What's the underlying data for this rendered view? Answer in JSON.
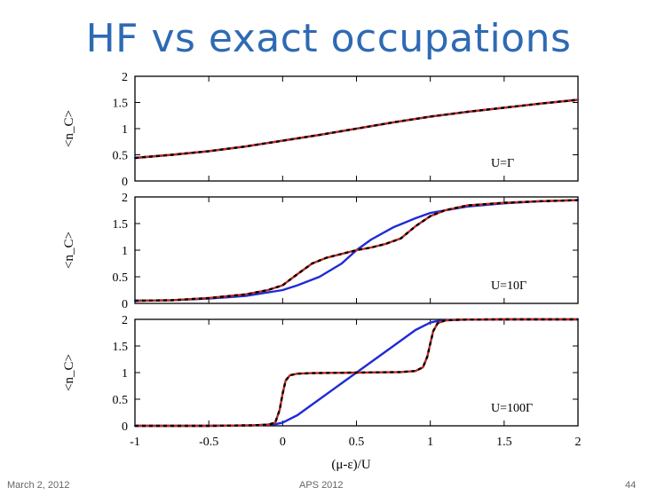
{
  "slide": {
    "title": "HF vs exact occupations",
    "footer_left": "March 2, 2012",
    "footer_center": "APS 2012",
    "footer_right": "44"
  },
  "colors": {
    "title": "#2E6AB4",
    "hf_curve": "#1E2BD6",
    "exact_curve_a": "#C0281E",
    "exact_curve_b": "#000000"
  },
  "chart_data": [
    {
      "type": "line",
      "panel": "top",
      "annotation": "U=Γ",
      "ylabel": "<n_C>",
      "xlabel": "",
      "xlim": [
        -1,
        2
      ],
      "ylim": [
        0,
        2
      ],
      "yticks": [
        "0",
        "0.5",
        "1",
        "1.5",
        "2"
      ],
      "series": [
        {
          "style": "solid-blue",
          "x": [
            -1,
            -0.75,
            -0.5,
            -0.25,
            0,
            0.25,
            0.5,
            0.75,
            1,
            1.25,
            1.5,
            1.75,
            2
          ],
          "y": [
            0.44,
            0.5,
            0.57,
            0.66,
            0.77,
            0.88,
            1.0,
            1.12,
            1.23,
            1.32,
            1.4,
            1.48,
            1.55
          ]
        },
        {
          "style": "dashed-red-black",
          "x": [
            -1,
            -0.75,
            -0.5,
            -0.25,
            0,
            0.25,
            0.5,
            0.75,
            1,
            1.25,
            1.5,
            1.75,
            2
          ],
          "y": [
            0.44,
            0.5,
            0.57,
            0.66,
            0.77,
            0.88,
            1.0,
            1.12,
            1.23,
            1.32,
            1.4,
            1.48,
            1.55
          ]
        }
      ]
    },
    {
      "type": "line",
      "panel": "middle",
      "annotation": "U=10Γ",
      "ylabel": "<n_C>",
      "xlabel": "",
      "xlim": [
        -1,
        2
      ],
      "ylim": [
        0,
        2
      ],
      "yticks": [
        "0",
        "0.5",
        "1",
        "1.5",
        "2"
      ],
      "series": [
        {
          "style": "solid-blue",
          "x": [
            -1,
            -0.75,
            -0.5,
            -0.25,
            0,
            0.1,
            0.25,
            0.4,
            0.5,
            0.6,
            0.75,
            0.9,
            1,
            1.25,
            1.5,
            1.75,
            2
          ],
          "y": [
            0.05,
            0.06,
            0.09,
            0.14,
            0.25,
            0.34,
            0.5,
            0.75,
            1.0,
            1.2,
            1.43,
            1.6,
            1.7,
            1.82,
            1.88,
            1.92,
            1.94
          ]
        },
        {
          "style": "dashed-red-black",
          "x": [
            -1,
            -0.75,
            -0.5,
            -0.25,
            -0.1,
            0,
            0.1,
            0.2,
            0.3,
            0.4,
            0.5,
            0.6,
            0.7,
            0.8,
            0.9,
            1.0,
            1.1,
            1.25,
            1.5,
            1.75,
            2
          ],
          "y": [
            0.05,
            0.06,
            0.1,
            0.17,
            0.25,
            0.34,
            0.55,
            0.75,
            0.86,
            0.93,
            1.0,
            1.05,
            1.12,
            1.22,
            1.45,
            1.64,
            1.75,
            1.84,
            1.89,
            1.92,
            1.94
          ]
        }
      ]
    },
    {
      "type": "line",
      "panel": "bottom",
      "annotation": "U=100Γ",
      "ylabel": "<n_C>",
      "xlabel": "(μ-ε)/U",
      "xlim": [
        -1,
        2
      ],
      "ylim": [
        0,
        2
      ],
      "yticks": [
        "0",
        "0.5",
        "1",
        "1.5",
        "2"
      ],
      "xticks": [
        "-1",
        "-0.5",
        "0",
        "0.5",
        "1",
        "1.5",
        "2"
      ],
      "series": [
        {
          "style": "solid-blue",
          "x": [
            -1,
            -0.5,
            -0.2,
            -0.05,
            0,
            0.1,
            0.25,
            0.5,
            0.75,
            0.9,
            1.0,
            1.05,
            1.1,
            1.25,
            1.5,
            2
          ],
          "y": [
            0.0,
            0.0,
            0.01,
            0.03,
            0.06,
            0.2,
            0.5,
            1.0,
            1.5,
            1.8,
            1.94,
            1.97,
            1.985,
            1.995,
            2.0,
            2.0
          ]
        },
        {
          "style": "dashed-red-black",
          "x": [
            -1,
            -0.5,
            -0.2,
            -0.1,
            -0.05,
            -0.02,
            0,
            0.02,
            0.05,
            0.1,
            0.2,
            0.5,
            0.8,
            0.9,
            0.95,
            0.98,
            1.0,
            1.02,
            1.05,
            1.1,
            1.2,
            1.5,
            2
          ],
          "y": [
            0.0,
            0.0,
            0.01,
            0.02,
            0.06,
            0.3,
            0.6,
            0.85,
            0.95,
            0.98,
            0.99,
            1.0,
            1.01,
            1.03,
            1.1,
            1.3,
            1.55,
            1.78,
            1.93,
            1.98,
            1.995,
            2.0,
            2.0
          ]
        }
      ]
    }
  ]
}
